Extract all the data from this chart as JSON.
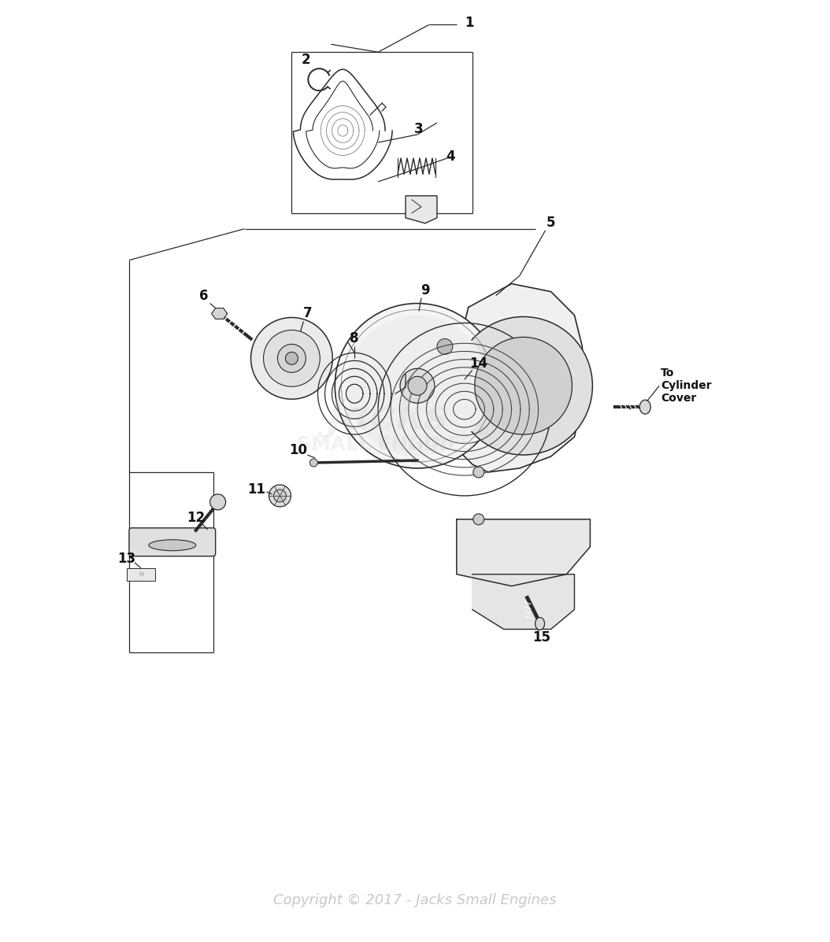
{
  "bg_color": "#ffffff",
  "copyright_text": "Copyright © 2017 - Jacks Small Engines",
  "copyright_color": "#c8c8c8",
  "copyright_fontsize": 13,
  "line_color": "#2a2a2a",
  "label_fontsize": 12,
  "label_color": "#111111",
  "to_cylinder_cover": "To\nCylinder\nCover",
  "figsize": [
    10.54,
    11.97
  ],
  "dpi": 100
}
